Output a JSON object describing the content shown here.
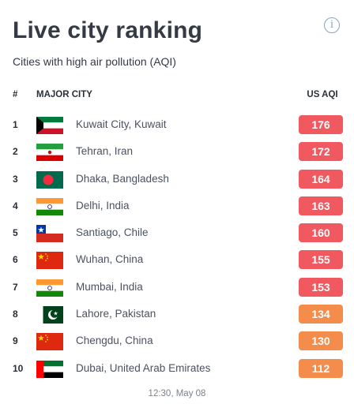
{
  "widget": {
    "title": "Live city ranking",
    "subtitle": "Cities with high air pollution (AQI)",
    "info_icon": "info-icon"
  },
  "table": {
    "headers": {
      "rank": "#",
      "city": "MAJOR CITY",
      "aqi": "US AQI"
    },
    "rows": [
      {
        "rank": "1",
        "flag": "kuwait",
        "city": "Kuwait City, Kuwait",
        "aqi": "176",
        "level": "unhealthy"
      },
      {
        "rank": "2",
        "flag": "iran",
        "city": "Tehran, Iran",
        "aqi": "172",
        "level": "unhealthy"
      },
      {
        "rank": "3",
        "flag": "bangladesh",
        "city": "Dhaka, Bangladesh",
        "aqi": "164",
        "level": "unhealthy"
      },
      {
        "rank": "4",
        "flag": "india",
        "city": "Delhi, India",
        "aqi": "163",
        "level": "unhealthy"
      },
      {
        "rank": "5",
        "flag": "chile",
        "city": "Santiago, Chile",
        "aqi": "160",
        "level": "unhealthy"
      },
      {
        "rank": "6",
        "flag": "china",
        "city": "Wuhan, China",
        "aqi": "155",
        "level": "unhealthy"
      },
      {
        "rank": "7",
        "flag": "india",
        "city": "Mumbai, India",
        "aqi": "153",
        "level": "unhealthy"
      },
      {
        "rank": "8",
        "flag": "pakistan",
        "city": "Lahore, Pakistan",
        "aqi": "134",
        "level": "sensitive"
      },
      {
        "rank": "9",
        "flag": "china",
        "city": "Chengdu, China",
        "aqi": "130",
        "level": "sensitive"
      },
      {
        "rank": "10",
        "flag": "uae",
        "city": "Dubai, United Arab Emirates",
        "aqi": "112",
        "level": "sensitive"
      }
    ]
  },
  "colors": {
    "unhealthy": "#f0595f",
    "sensitive": "#f48c4c"
  },
  "timestamp": "12:30, May 08"
}
